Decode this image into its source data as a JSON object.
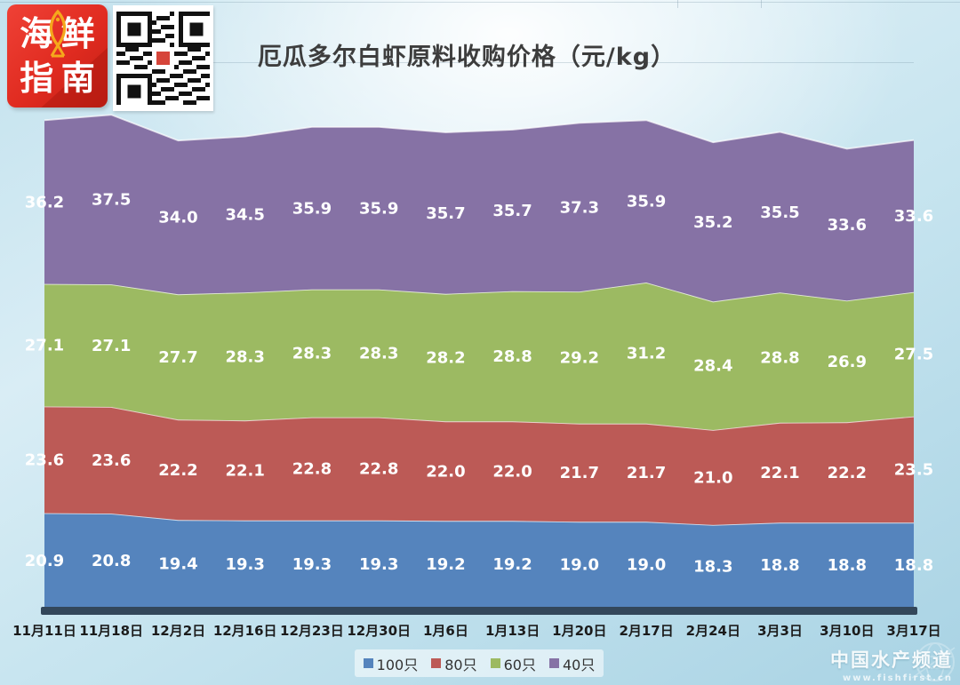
{
  "header": {
    "title": "厄瓜多尔白虾原料收购价格（元/kg）",
    "logo_name": "海鲜指南",
    "logo_chars": [
      "海",
      "鲜",
      "指",
      "南"
    ],
    "logo_bg_color": "#e02b20",
    "logo_fish_color": "#f5a81c"
  },
  "chart_data": {
    "type": "area",
    "stacked": true,
    "title": "厄瓜多尔白虾原料收购价格（元/kg）",
    "unit": "元/kg",
    "grid": false,
    "legend_position": "bottom",
    "categories": [
      "11月11日",
      "11月18日",
      "12月2日",
      "12月16日",
      "12月23日",
      "12月30日",
      "1月6日",
      "1月13日",
      "1月20日",
      "2月17日",
      "2月24日",
      "3月3日",
      "3月10日",
      "3月17日"
    ],
    "series": [
      {
        "name": "100只",
        "color": "#5584bd",
        "values": [
          20.9,
          20.8,
          19.4,
          19.3,
          19.3,
          19.3,
          19.2,
          19.2,
          19.0,
          19.0,
          18.3,
          18.8,
          18.8,
          18.8
        ]
      },
      {
        "name": "80只",
        "color": "#bc5a56",
        "values": [
          23.6,
          23.6,
          22.2,
          22.1,
          22.8,
          22.8,
          22.0,
          22.0,
          21.7,
          21.7,
          21.0,
          22.1,
          22.2,
          23.5
        ]
      },
      {
        "name": "60只",
        "color": "#9cba62",
        "values": [
          27.1,
          27.1,
          27.7,
          28.3,
          28.3,
          28.3,
          28.2,
          28.8,
          29.2,
          31.2,
          28.4,
          28.8,
          26.9,
          27.5
        ]
      },
      {
        "name": "40只",
        "color": "#8672a5",
        "values": [
          36.2,
          37.5,
          34.0,
          34.5,
          35.9,
          35.9,
          35.7,
          35.7,
          37.3,
          35.9,
          35.2,
          35.5,
          33.6,
          33.6
        ]
      }
    ],
    "baseline_color": "#33475a"
  },
  "watermark": {
    "line1": "中国水产频道",
    "line2": "www.fishfirst.cn"
  }
}
